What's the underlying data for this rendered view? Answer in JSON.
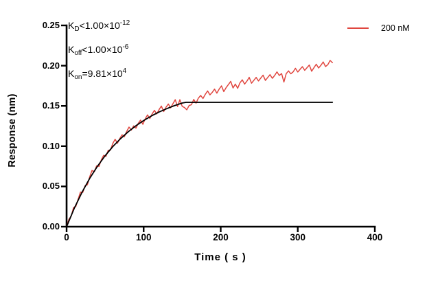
{
  "chart_data": {
    "type": "line",
    "title": "",
    "xlabel": "Time ( s )",
    "ylabel": "Response (nm)",
    "xlim": [
      0,
      400
    ],
    "ylim": [
      0,
      0.25
    ],
    "grid": false,
    "x_tick_values": [
      0,
      100,
      200,
      300,
      400
    ],
    "x_tick_labels": [
      "0",
      "100",
      "200",
      "300",
      "400"
    ],
    "y_tick_values": [
      0,
      0.05,
      0.1,
      0.15,
      0.2,
      0.25
    ],
    "y_tick_labels": [
      "0.00",
      "0.05",
      "0.10",
      "0.15",
      "0.20",
      "0.25"
    ],
    "legend_position": "top-right",
    "legend": {
      "label": "200 nM",
      "color": "#e0463f"
    },
    "kinetics_annotations": [
      {
        "pre": "K",
        "sub": "D",
        "mid": "<1.00×10",
        "sup": "-12"
      },
      {
        "pre": "K",
        "sub": "off",
        "mid": "<1.00×10",
        "sup": "-6"
      },
      {
        "pre": "K",
        "sub": "on",
        "mid": "=9.81×10",
        "sup": "4"
      }
    ],
    "series": [
      {
        "name": "200 nM",
        "role": "measured",
        "color": "#e0463f",
        "width": 1.5,
        "t": [
          0,
          3,
          6,
          9,
          12,
          15,
          18,
          21,
          24,
          27,
          30,
          33,
          36,
          39,
          42,
          45,
          48,
          51,
          54,
          57,
          60,
          63,
          66,
          69,
          72,
          75,
          78,
          81,
          84,
          87,
          90,
          93,
          96,
          99,
          102,
          105,
          108,
          111,
          114,
          117,
          120,
          123,
          126,
          129,
          132,
          135,
          138,
          141,
          144,
          147,
          150,
          153,
          156,
          159,
          162,
          165,
          168,
          171,
          174,
          177,
          180,
          183,
          186,
          189,
          192,
          195,
          198,
          201,
          204,
          207,
          210,
          213,
          216,
          219,
          222,
          225,
          228,
          231,
          234,
          237,
          240,
          243,
          246,
          249,
          252,
          255,
          258,
          261,
          264,
          267,
          270,
          273,
          276,
          279,
          282,
          285,
          288,
          291,
          294,
          297,
          300,
          303,
          306,
          309,
          312,
          315,
          318,
          321,
          324,
          327,
          330,
          333,
          336,
          339,
          342,
          345
        ],
        "r": [
          0,
          0.0092,
          0.0131,
          0.0237,
          0.0251,
          0.0342,
          0.043,
          0.0426,
          0.0509,
          0.0521,
          0.062,
          0.0698,
          0.0683,
          0.0756,
          0.0748,
          0.0828,
          0.0886,
          0.0873,
          0.0948,
          0.0952,
          0.1035,
          0.1086,
          0.1036,
          0.1094,
          0.1141,
          0.1118,
          0.1183,
          0.1237,
          0.12,
          0.1252,
          0.1224,
          0.1284,
          0.1324,
          0.1272,
          0.134,
          0.1388,
          0.1344,
          0.14,
          0.1445,
          0.14,
          0.1454,
          0.1498,
          0.143,
          0.1483,
          0.1524,
          0.1476,
          0.1527,
          0.1577,
          0.1492,
          0.1577,
          0.1495,
          0.148,
          0.1452,
          0.1505,
          0.1515,
          0.158,
          0.1534,
          0.1597,
          0.163,
          0.1592,
          0.1644,
          0.1686,
          0.1637,
          0.1668,
          0.1709,
          0.1659,
          0.1709,
          0.1749,
          0.1678,
          0.1727,
          0.1766,
          0.1805,
          0.1723,
          0.1771,
          0.1719,
          0.1787,
          0.1824,
          0.1771,
          0.1808,
          0.1855,
          0.1782,
          0.1818,
          0.1854,
          0.181,
          0.1846,
          0.1882,
          0.1817,
          0.1853,
          0.1888,
          0.1843,
          0.1878,
          0.1923,
          0.1878,
          0.1902,
          0.1797,
          0.1901,
          0.1935,
          0.1899,
          0.1923,
          0.1967,
          0.1921,
          0.1955,
          0.1988,
          0.1942,
          0.1975,
          0.2008,
          0.1931,
          0.1975,
          0.2018,
          0.1971,
          0.2004,
          0.2046,
          0.1989,
          0.2012,
          0.2065,
          0.2037
        ]
      },
      {
        "name": "fit",
        "role": "fit-curve",
        "color": "#000000",
        "width": 1.8,
        "t": [
          0,
          10,
          20,
          30,
          40,
          50,
          60,
          70,
          80,
          90,
          100,
          110,
          120,
          130,
          140,
          150,
          155,
          345
        ],
        "r": [
          0,
          0.0229,
          0.0427,
          0.06,
          0.075,
          0.0881,
          0.0995,
          0.1093,
          0.1179,
          0.1254,
          0.1318,
          0.1375,
          0.1424,
          0.1466,
          0.1504,
          0.1536,
          0.1545,
          0.1545
        ]
      }
    ]
  }
}
